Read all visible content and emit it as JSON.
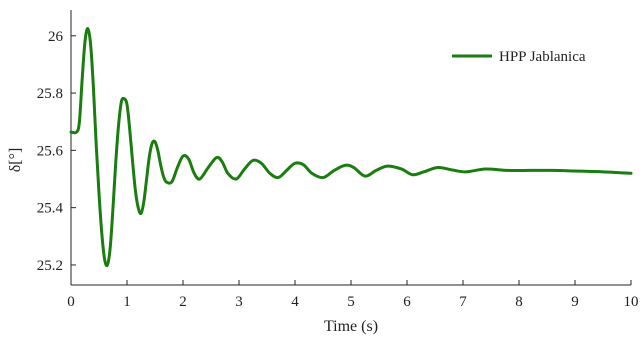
{
  "chart_data": {
    "type": "line",
    "title": "",
    "xlabel": "Time (s)",
    "ylabel": "δ[°]",
    "xlim": [
      0,
      10
    ],
    "ylim": [
      25.13,
      26.09
    ],
    "xticks": [
      "0",
      "1",
      "2",
      "3",
      "4",
      "5",
      "6",
      "7",
      "8",
      "9",
      "10"
    ],
    "yticks": [
      "25.2",
      "25.4",
      "25.6",
      "25.8",
      "26"
    ],
    "grid": false,
    "legend_position": "top-right",
    "series": [
      {
        "name": "HPP Jablanica",
        "color": "#1a7d10",
        "x": [
          0,
          0.1,
          0.15,
          0.2,
          0.25,
          0.3,
          0.35,
          0.4,
          0.45,
          0.5,
          0.55,
          0.6,
          0.65,
          0.7,
          0.75,
          0.8,
          0.85,
          0.9,
          0.95,
          1.0,
          1.05,
          1.1,
          1.15,
          1.2,
          1.25,
          1.3,
          1.35,
          1.4,
          1.45,
          1.5,
          1.55,
          1.6,
          1.65,
          1.7,
          1.8,
          1.9,
          2.0,
          2.1,
          2.2,
          2.3,
          2.45,
          2.6,
          2.7,
          2.8,
          2.95,
          3.1,
          3.25,
          3.4,
          3.55,
          3.7,
          3.85,
          4.0,
          4.15,
          4.3,
          4.5,
          4.7,
          4.9,
          5.05,
          5.25,
          5.45,
          5.65,
          5.9,
          6.1,
          6.3,
          6.55,
          6.8,
          7.05,
          7.4,
          7.8,
          8.2,
          8.6,
          9.0,
          9.5,
          10.0
        ],
        "values": [
          25.664,
          25.664,
          25.7,
          25.85,
          25.98,
          26.025,
          25.97,
          25.82,
          25.62,
          25.45,
          25.31,
          25.22,
          25.2,
          25.26,
          25.4,
          25.56,
          25.69,
          25.77,
          25.78,
          25.76,
          25.67,
          25.56,
          25.46,
          25.4,
          25.38,
          25.42,
          25.5,
          25.58,
          25.625,
          25.63,
          25.6,
          25.55,
          25.51,
          25.49,
          25.49,
          25.54,
          25.58,
          25.57,
          25.52,
          25.5,
          25.54,
          25.575,
          25.56,
          25.52,
          25.5,
          25.535,
          25.565,
          25.555,
          25.52,
          25.505,
          25.53,
          25.555,
          25.55,
          25.52,
          25.505,
          25.53,
          25.548,
          25.54,
          25.51,
          25.53,
          25.545,
          25.535,
          25.515,
          25.525,
          25.54,
          25.532,
          25.525,
          25.535,
          25.53,
          25.53,
          25.53,
          25.528,
          25.525,
          25.52
        ]
      }
    ]
  }
}
